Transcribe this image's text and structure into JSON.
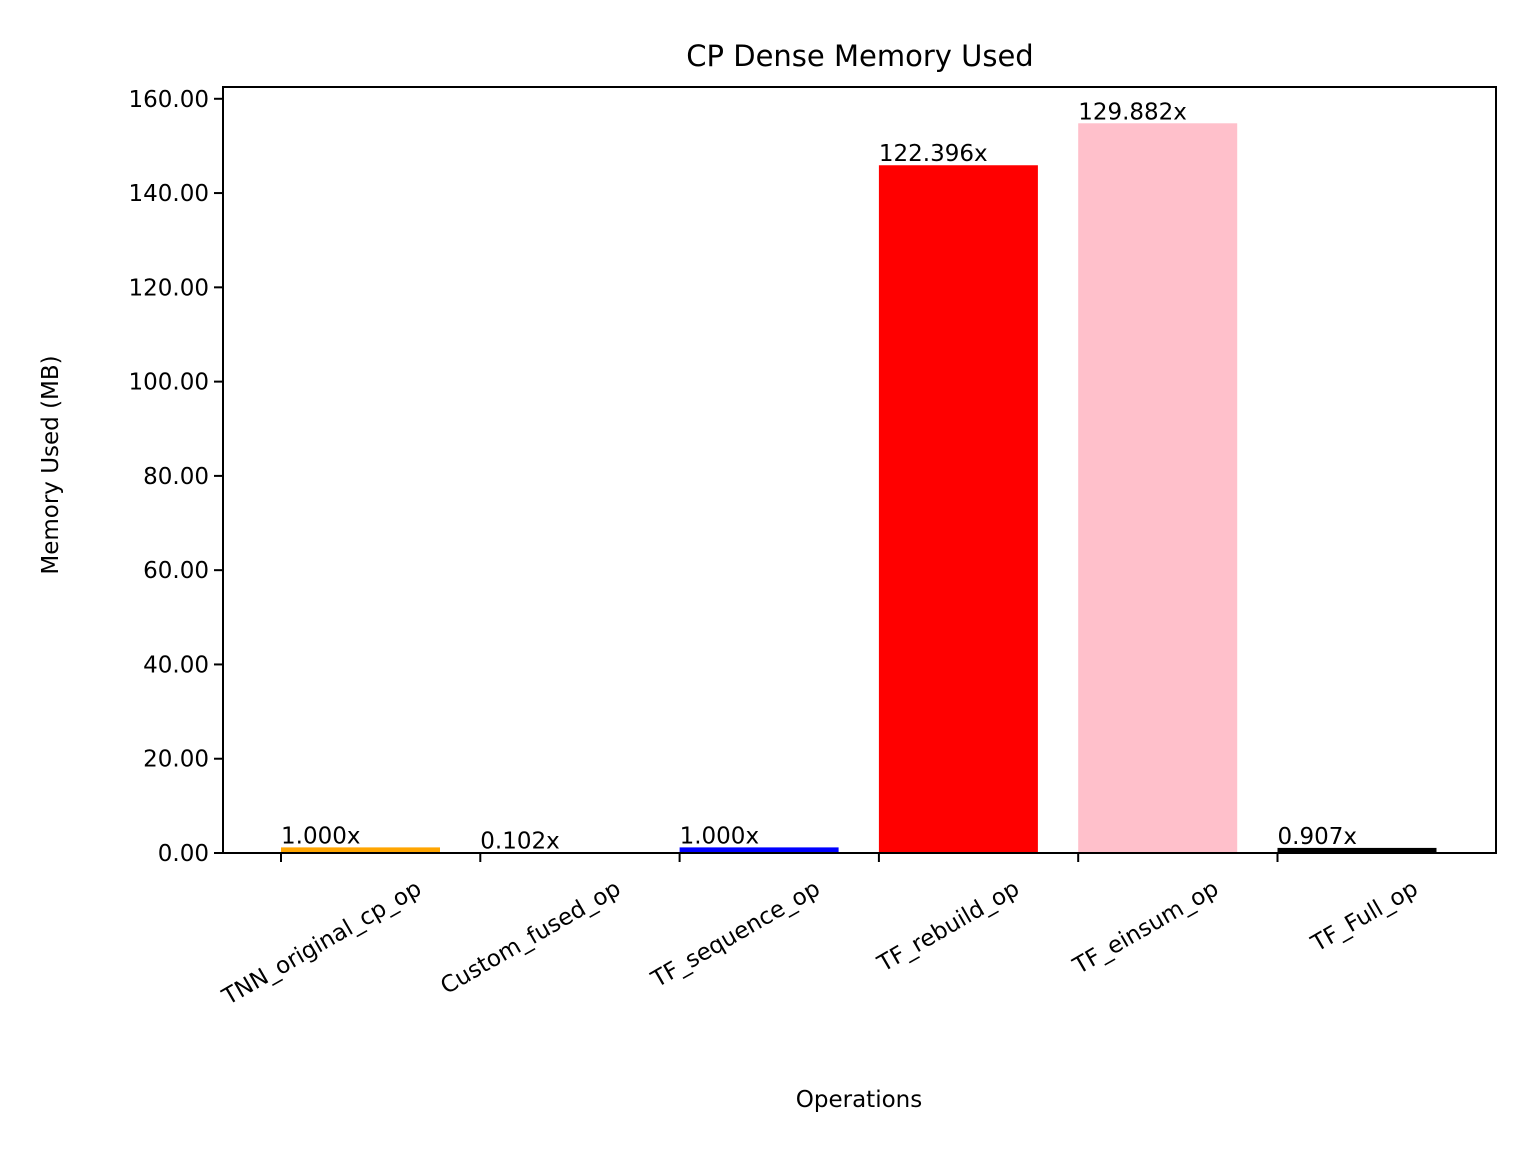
{
  "chart_data": {
    "type": "bar",
    "title": "CP Dense Memory Used",
    "xlabel": "Operations",
    "ylabel": "Memory Used (MB)",
    "ylim": [
      0,
      162.5
    ],
    "yticks": [
      "0.00",
      "20.00",
      "40.00",
      "60.00",
      "80.00",
      "100.00",
      "120.00",
      "140.00",
      "160.00"
    ],
    "categories": [
      "TNN_original_cp_op",
      "Custom_fused_op",
      "TF_sequence_op",
      "TF_rebuild_op",
      "TF_einsum_op",
      "TF_Full_op"
    ],
    "values": [
      1.19,
      0.12,
      1.19,
      145.9,
      154.8,
      1.08
    ],
    "bar_labels": [
      "1.000x",
      "0.102x",
      "1.000x",
      "122.396x",
      "129.882x",
      "0.907x"
    ],
    "colors": [
      "#ffa500",
      "#000000",
      "#0000ff",
      "#ff0000",
      "#ffc0cb",
      "#000000"
    ],
    "grid": false,
    "legend": "none"
  }
}
